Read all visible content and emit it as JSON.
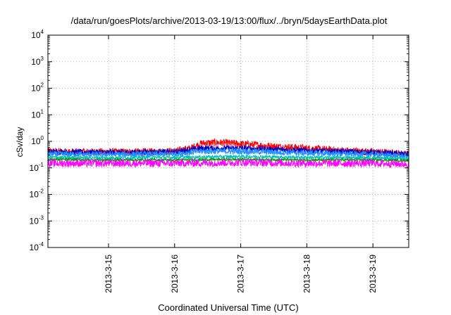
{
  "chart_data": {
    "type": "line",
    "title": "/data/run/goesPlots/archive/2013-03-19/13:00/flux/../bryn/5daysEarthData.plot",
    "xlabel": "Coordinated Universal Time (UTC)",
    "ylabel": "cSv/day",
    "yscale": "log",
    "ylim": [
      0.0001,
      10000
    ],
    "xlim": [
      "2013-03-14 02:00",
      "2013-03-19 13:00"
    ],
    "grid": true,
    "yticks": [
      {
        "base": "10",
        "exp": "-4",
        "value": 0.0001
      },
      {
        "base": "10",
        "exp": "-3",
        "value": 0.001
      },
      {
        "base": "10",
        "exp": "-2",
        "value": 0.01
      },
      {
        "base": "10",
        "exp": "-1",
        "value": 0.1
      },
      {
        "base": "10",
        "exp": "0",
        "value": 1
      },
      {
        "base": "10",
        "exp": "1",
        "value": 10
      },
      {
        "base": "10",
        "exp": "2",
        "value": 100
      },
      {
        "base": "10",
        "exp": "3",
        "value": 1000
      },
      {
        "base": "10",
        "exp": "4",
        "value": 10000
      }
    ],
    "xticks": [
      {
        "label": "2013-3-15",
        "date": "2013-03-15"
      },
      {
        "label": "2013-3-16",
        "date": "2013-03-16"
      },
      {
        "label": "2013-3-17",
        "date": "2013-03-17"
      },
      {
        "label": "2013-3-18",
        "date": "2013-03-18"
      },
      {
        "label": "2013-3-19",
        "date": "2013-03-19"
      }
    ],
    "series": [
      {
        "color": "#ff0000",
        "x": [
          "2013-03-14 02:00",
          "2013-03-14 12:00",
          "2013-03-15 00:00",
          "2013-03-15 12:00",
          "2013-03-16 00:00",
          "2013-03-16 06:00",
          "2013-03-16 10:00",
          "2013-03-16 16:00",
          "2013-03-17 00:00",
          "2013-03-17 12:00",
          "2013-03-18 00:00",
          "2013-03-18 12:00",
          "2013-03-19 00:00",
          "2013-03-19 13:00"
        ],
        "y": [
          0.42,
          0.4,
          0.4,
          0.4,
          0.42,
          0.55,
          0.85,
          0.9,
          0.8,
          0.65,
          0.55,
          0.45,
          0.4,
          0.33
        ]
      },
      {
        "color": "#0000cc",
        "x": [
          "2013-03-14 02:00",
          "2013-03-15 00:00",
          "2013-03-16 00:00",
          "2013-03-16 10:00",
          "2013-03-17 00:00",
          "2013-03-18 00:00",
          "2013-03-19 00:00",
          "2013-03-19 13:00"
        ],
        "y": [
          0.4,
          0.38,
          0.4,
          0.55,
          0.55,
          0.45,
          0.38,
          0.32
        ]
      },
      {
        "color": "#1e90ff",
        "x": [
          "2013-03-14 02:00",
          "2013-03-15 00:00",
          "2013-03-16 00:00",
          "2013-03-16 10:00",
          "2013-03-17 00:00",
          "2013-03-18 00:00",
          "2013-03-19 00:00",
          "2013-03-19 13:00"
        ],
        "y": [
          0.33,
          0.32,
          0.33,
          0.42,
          0.42,
          0.36,
          0.32,
          0.27
        ]
      },
      {
        "color": "#00bfbf",
        "x": [
          "2013-03-14 02:00",
          "2013-03-15 00:00",
          "2013-03-16 00:00",
          "2013-03-17 00:00",
          "2013-03-18 00:00",
          "2013-03-19 00:00",
          "2013-03-19 13:00"
        ],
        "y": [
          0.25,
          0.24,
          0.25,
          0.27,
          0.25,
          0.24,
          0.22
        ]
      },
      {
        "color": "#00a000",
        "x": [
          "2013-03-14 02:00",
          "2013-03-15 00:00",
          "2013-03-16 00:00",
          "2013-03-17 00:00",
          "2013-03-18 00:00",
          "2013-03-19 00:00",
          "2013-03-19 13:00"
        ],
        "y": [
          0.21,
          0.2,
          0.2,
          0.21,
          0.2,
          0.2,
          0.19
        ]
      },
      {
        "color": "#ff00ff",
        "x": [
          "2013-03-14 02:00",
          "2013-03-15 00:00",
          "2013-03-16 00:00",
          "2013-03-17 00:00",
          "2013-03-18 00:00",
          "2013-03-19 00:00",
          "2013-03-19 13:00"
        ],
        "y": [
          0.15,
          0.15,
          0.15,
          0.16,
          0.15,
          0.15,
          0.14
        ]
      }
    ]
  }
}
